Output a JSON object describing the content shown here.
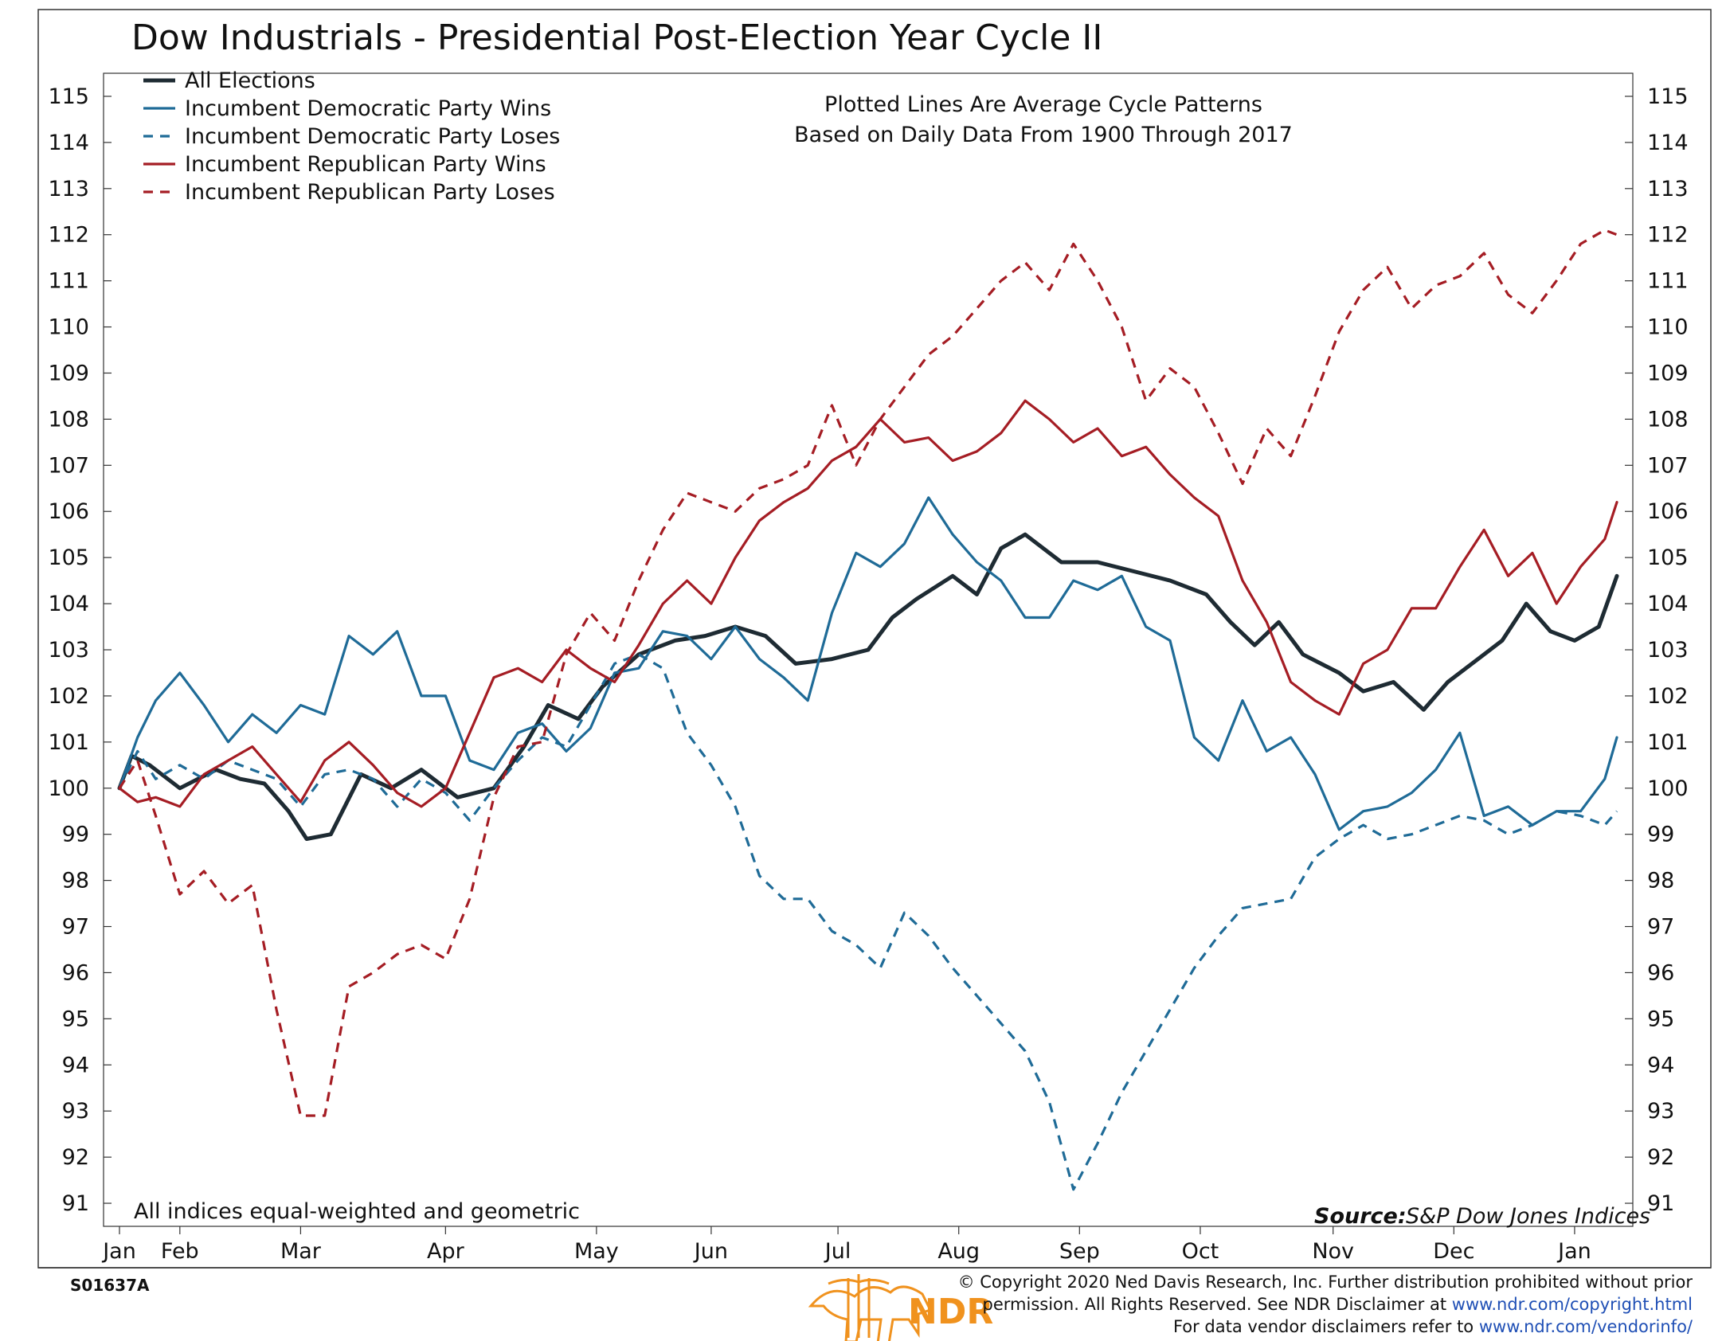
{
  "chart_data": {
    "type": "line",
    "title": "Dow Industrials - Presidential Post-Election Year Cycle II",
    "annotation_lines": [
      "Plotted Lines Are Average Cycle Patterns",
      "Based on Daily Data From 1900 Through 2017"
    ],
    "note": "All indices equal-weighted and geometric",
    "source_label": "Source:",
    "source_value": "S&P Dow Jones Indices",
    "x_ticks": [
      "Jan",
      "Feb",
      "Mar",
      "Apr",
      "May",
      "Jun",
      "Jul",
      "Aug",
      "Sep",
      "Oct",
      "Nov",
      "Dec",
      "Jan"
    ],
    "x_tick_positions": [
      0,
      0.5,
      1.5,
      2.7,
      3.95,
      4.9,
      5.95,
      6.95,
      7.95,
      8.95,
      10.05,
      11.05,
      12.05
    ],
    "ylim": [
      90.5,
      115.5
    ],
    "y_ticks": [
      91,
      92,
      93,
      94,
      95,
      96,
      97,
      98,
      99,
      100,
      101,
      102,
      103,
      104,
      105,
      106,
      107,
      108,
      109,
      110,
      111,
      112,
      113,
      114,
      115
    ],
    "xlim": [
      0,
      12.4
    ],
    "legend_position": "top-left",
    "series": [
      {
        "name": "All Elections",
        "color": "#1e2b33",
        "dash": "solid",
        "x": [
          0,
          0.1,
          0.25,
          0.5,
          0.8,
          1.0,
          1.2,
          1.4,
          1.55,
          1.75,
          2.0,
          2.25,
          2.5,
          2.8,
          3.1,
          3.35,
          3.55,
          3.8,
          4.0,
          4.3,
          4.6,
          4.85,
          5.1,
          5.35,
          5.6,
          5.9,
          6.2,
          6.4,
          6.6,
          6.9,
          7.1,
          7.3,
          7.5,
          7.8,
          8.1,
          8.4,
          8.7,
          9.0,
          9.2,
          9.4,
          9.6,
          9.8,
          10.1,
          10.3,
          10.55,
          10.8,
          11.0,
          11.25,
          11.45,
          11.65,
          11.85,
          12.05,
          12.25,
          12.4
        ],
        "values": [
          100,
          100.7,
          100.5,
          100.0,
          100.4,
          100.2,
          100.1,
          99.5,
          98.9,
          99.0,
          100.3,
          100.0,
          100.4,
          99.8,
          100.0,
          100.9,
          101.8,
          101.5,
          102.2,
          102.9,
          103.2,
          103.3,
          103.5,
          103.3,
          102.7,
          102.8,
          103.0,
          103.7,
          104.1,
          104.6,
          104.2,
          105.2,
          105.5,
          104.9,
          104.9,
          104.7,
          104.5,
          104.2,
          103.6,
          103.1,
          103.6,
          102.9,
          102.5,
          102.1,
          102.3,
          101.7,
          102.3,
          102.8,
          103.2,
          104.0,
          103.4,
          103.2,
          103.5,
          104.6
        ]
      },
      {
        "name": "Incumbent Democratic Party Wins",
        "color": "#1f6b97",
        "dash": "solid",
        "x": [
          0,
          0.15,
          0.3,
          0.5,
          0.7,
          0.9,
          1.1,
          1.3,
          1.5,
          1.7,
          1.9,
          2.1,
          2.3,
          2.5,
          2.7,
          2.9,
          3.1,
          3.3,
          3.5,
          3.7,
          3.9,
          4.1,
          4.3,
          4.5,
          4.7,
          4.9,
          5.1,
          5.3,
          5.5,
          5.7,
          5.9,
          6.1,
          6.3,
          6.5,
          6.7,
          6.9,
          7.1,
          7.3,
          7.5,
          7.7,
          7.9,
          8.1,
          8.3,
          8.5,
          8.7,
          8.9,
          9.1,
          9.3,
          9.5,
          9.7,
          9.9,
          10.1,
          10.3,
          10.5,
          10.7,
          10.9,
          11.1,
          11.3,
          11.5,
          11.7,
          11.9,
          12.1,
          12.3,
          12.4
        ],
        "values": [
          100,
          101.1,
          101.9,
          102.5,
          101.8,
          101.0,
          101.6,
          101.2,
          101.8,
          101.6,
          103.3,
          102.9,
          103.4,
          102.0,
          102.0,
          100.6,
          100.4,
          101.2,
          101.4,
          100.8,
          101.3,
          102.5,
          102.6,
          103.4,
          103.3,
          102.8,
          103.5,
          102.8,
          102.4,
          101.9,
          103.8,
          105.1,
          104.8,
          105.3,
          106.3,
          105.5,
          104.9,
          104.5,
          103.7,
          103.7,
          104.5,
          104.3,
          104.6,
          103.5,
          103.2,
          101.1,
          100.6,
          101.9,
          100.8,
          101.1,
          100.3,
          99.1,
          99.5,
          99.6,
          99.9,
          100.4,
          101.2,
          99.4,
          99.6,
          99.2,
          99.5,
          99.5,
          100.2,
          101.1
        ]
      },
      {
        "name": "Incumbent Democratic Party Loses",
        "color": "#1f6b97",
        "dash": "dashed",
        "x": [
          0,
          0.15,
          0.3,
          0.5,
          0.7,
          0.9,
          1.1,
          1.3,
          1.5,
          1.7,
          1.9,
          2.1,
          2.3,
          2.5,
          2.7,
          2.9,
          3.1,
          3.3,
          3.5,
          3.7,
          3.9,
          4.1,
          4.3,
          4.5,
          4.7,
          4.9,
          5.1,
          5.3,
          5.5,
          5.7,
          5.9,
          6.1,
          6.3,
          6.5,
          6.7,
          6.9,
          7.1,
          7.3,
          7.5,
          7.7,
          7.9,
          8.1,
          8.3,
          8.5,
          8.7,
          8.9,
          9.1,
          9.3,
          9.5,
          9.7,
          9.9,
          10.1,
          10.3,
          10.5,
          10.7,
          10.9,
          11.1,
          11.3,
          11.5,
          11.7,
          11.9,
          12.1,
          12.3,
          12.4
        ],
        "values": [
          100,
          100.8,
          100.2,
          100.5,
          100.2,
          100.6,
          100.4,
          100.2,
          99.6,
          100.3,
          100.4,
          100.2,
          99.6,
          100.2,
          99.9,
          99.3,
          100.0,
          100.6,
          101.1,
          100.9,
          101.8,
          102.7,
          102.9,
          102.6,
          101.2,
          100.5,
          99.6,
          98.1,
          97.6,
          97.6,
          96.9,
          96.6,
          96.1,
          97.3,
          96.8,
          96.1,
          95.5,
          94.9,
          94.3,
          93.2,
          91.3,
          92.3,
          93.4,
          94.3,
          95.2,
          96.1,
          96.8,
          97.4,
          97.5,
          97.6,
          98.5,
          98.9,
          99.2,
          98.9,
          99.0,
          99.2,
          99.4,
          99.3,
          99.0,
          99.2,
          99.5,
          99.4,
          99.2,
          99.5
        ]
      },
      {
        "name": "Incumbent Republican Party Wins",
        "color": "#a51d24",
        "dash": "solid",
        "x": [
          0,
          0.15,
          0.3,
          0.5,
          0.7,
          0.9,
          1.1,
          1.3,
          1.5,
          1.7,
          1.9,
          2.1,
          2.3,
          2.5,
          2.7,
          2.9,
          3.1,
          3.3,
          3.5,
          3.7,
          3.9,
          4.1,
          4.3,
          4.5,
          4.7,
          4.9,
          5.1,
          5.3,
          5.5,
          5.7,
          5.9,
          6.1,
          6.3,
          6.5,
          6.7,
          6.9,
          7.1,
          7.3,
          7.5,
          7.7,
          7.9,
          8.1,
          8.3,
          8.5,
          8.7,
          8.9,
          9.1,
          9.3,
          9.5,
          9.7,
          9.9,
          10.1,
          10.3,
          10.5,
          10.7,
          10.9,
          11.1,
          11.3,
          11.5,
          11.7,
          11.9,
          12.1,
          12.3,
          12.4
        ],
        "values": [
          100,
          99.7,
          99.8,
          99.6,
          100.3,
          100.6,
          100.9,
          100.3,
          99.7,
          100.6,
          101.0,
          100.5,
          99.9,
          99.6,
          100.0,
          101.2,
          102.4,
          102.6,
          102.3,
          103.0,
          102.6,
          102.3,
          103.1,
          104.0,
          104.5,
          104.0,
          105.0,
          105.8,
          106.2,
          106.5,
          107.1,
          107.4,
          108.0,
          107.5,
          107.6,
          107.1,
          107.3,
          107.7,
          108.4,
          108.0,
          107.5,
          107.8,
          107.2,
          107.4,
          106.8,
          106.3,
          105.9,
          104.5,
          103.6,
          102.3,
          101.9,
          101.6,
          102.7,
          103.0,
          103.9,
          103.9,
          104.8,
          105.6,
          104.6,
          105.1,
          104.0,
          104.8,
          105.4,
          106.2
        ]
      },
      {
        "name": "Incumbent Republican Party Loses",
        "color": "#a51d24",
        "dash": "dashed",
        "x": [
          0,
          0.15,
          0.3,
          0.5,
          0.7,
          0.9,
          1.1,
          1.3,
          1.5,
          1.7,
          1.9,
          2.1,
          2.3,
          2.5,
          2.7,
          2.9,
          3.1,
          3.3,
          3.5,
          3.7,
          3.9,
          4.1,
          4.3,
          4.5,
          4.7,
          4.9,
          5.1,
          5.3,
          5.5,
          5.7,
          5.9,
          6.1,
          6.3,
          6.5,
          6.7,
          6.9,
          7.1,
          7.3,
          7.5,
          7.7,
          7.9,
          8.1,
          8.3,
          8.5,
          8.7,
          8.9,
          9.1,
          9.3,
          9.5,
          9.7,
          9.9,
          10.1,
          10.3,
          10.5,
          10.7,
          10.9,
          11.1,
          11.3,
          11.5,
          11.7,
          11.9,
          12.1,
          12.3,
          12.4
        ],
        "values": [
          100,
          100.6,
          99.4,
          97.7,
          98.2,
          97.5,
          97.9,
          95.2,
          92.9,
          92.9,
          95.7,
          96.0,
          96.4,
          96.6,
          96.3,
          97.6,
          99.8,
          100.9,
          101.0,
          102.9,
          103.8,
          103.2,
          104.5,
          105.6,
          106.4,
          106.2,
          106.0,
          106.5,
          106.7,
          107.0,
          108.3,
          107.0,
          108.0,
          108.7,
          109.4,
          109.8,
          110.4,
          111.0,
          111.4,
          110.8,
          111.8,
          111.0,
          110.0,
          108.4,
          109.1,
          108.7,
          107.7,
          106.6,
          107.8,
          107.2,
          108.5,
          109.9,
          110.8,
          111.3,
          110.4,
          110.9,
          111.1,
          111.6,
          110.7,
          110.3,
          111.0,
          111.8,
          112.1,
          112.0
        ]
      }
    ]
  },
  "footer": {
    "chart_code": "S01637A",
    "logo_text": "NDR",
    "copyright_line1": "© Copyright 2020 Ned Davis Research, Inc. Further distribution prohibited without prior",
    "copyright_line2_text": "permission. All Rights Reserved. See NDR Disclaimer at ",
    "copyright_line2_link": "www.ndr.com/copyright.html",
    "copyright_line3_text": "For data vendor disclaimers refer to ",
    "copyright_line3_link": "www.ndr.com/vendorinfo/"
  },
  "colors": {
    "logo_orange": "#f0921e"
  }
}
